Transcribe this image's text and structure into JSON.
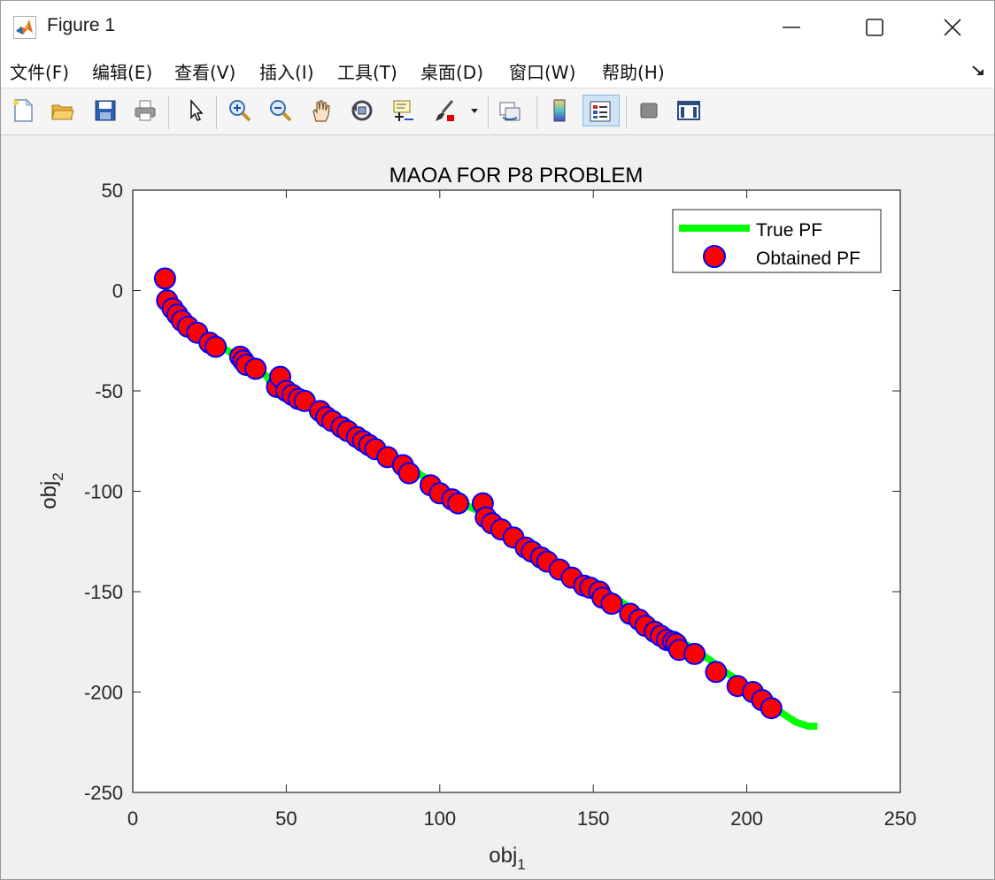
{
  "window": {
    "title": "Figure 1",
    "controls": [
      "minimize",
      "maximize",
      "close"
    ]
  },
  "menu": [
    {
      "label": "文件(F)"
    },
    {
      "label": "编辑(E)"
    },
    {
      "label": "查看(V)"
    },
    {
      "label": "插入(I)"
    },
    {
      "label": "工具(T)"
    },
    {
      "label": "桌面(D)"
    },
    {
      "label": "窗口(W)"
    },
    {
      "label": "帮助(H)"
    }
  ],
  "toolbar": {
    "icons": [
      "new-figure-icon",
      "open-file-icon",
      "save-icon",
      "print-icon",
      "edit-plot-arrow-icon",
      "zoom-in-icon",
      "zoom-out-icon",
      "pan-hand-icon",
      "rotate-3d-icon",
      "data-cursor-icon",
      "brush-icon",
      "brush-dropdown-icon",
      "link-plot-icon",
      "colorbar-icon",
      "legend-icon",
      "hide-plot-tools-icon",
      "show-plot-tools-icon"
    ],
    "active": "legend-icon"
  },
  "colors": {
    "true_pf": "#00ff00",
    "obtained_fill": "#ff0000",
    "obtained_edge": "#0000ff",
    "figure_bg": "#f0f0f0",
    "axes_bg": "#ffffff"
  },
  "chart_data": {
    "type": "scatter",
    "title": "MAOA FOR P8 PROBLEM",
    "xlabel": "obj",
    "xlabel_sub": "1",
    "ylabel": "obj",
    "ylabel_sub": "2",
    "xlim": [
      0,
      250
    ],
    "ylim": [
      -250,
      50
    ],
    "xticks": [
      0,
      50,
      100,
      150,
      200,
      250
    ],
    "yticks": [
      50,
      0,
      -50,
      -100,
      -150,
      -200,
      -250
    ],
    "grid": false,
    "legend_position": "top-right",
    "series": [
      {
        "name": "True PF",
        "type": "line",
        "points": [
          [
            10.5,
            4
          ],
          [
            11,
            0
          ],
          [
            12,
            -5
          ],
          [
            14,
            -10
          ],
          [
            16,
            -14
          ],
          [
            19,
            -18
          ],
          [
            22,
            -21
          ],
          [
            26,
            -25
          ],
          [
            30,
            -29
          ],
          [
            34,
            -33
          ],
          [
            38,
            -37
          ],
          [
            42,
            -41
          ],
          [
            44,
            -43
          ],
          [
            45,
            -48
          ],
          [
            48,
            -50
          ],
          [
            52,
            -53
          ],
          [
            56,
            -57
          ],
          [
            60,
            -60
          ],
          [
            64,
            -64
          ],
          [
            68,
            -67
          ],
          [
            72,
            -71
          ],
          [
            76,
            -75
          ],
          [
            80,
            -79
          ],
          [
            84,
            -83
          ],
          [
            88,
            -86
          ],
          [
            92,
            -90
          ],
          [
            96,
            -94
          ],
          [
            100,
            -98
          ],
          [
            104,
            -102
          ],
          [
            108,
            -106
          ],
          [
            110,
            -108
          ],
          [
            113,
            -110
          ],
          [
            116,
            -114
          ],
          [
            120,
            -118
          ],
          [
            124,
            -122
          ],
          [
            128,
            -126
          ],
          [
            132,
            -129
          ],
          [
            136,
            -133
          ],
          [
            140,
            -137
          ],
          [
            144,
            -141
          ],
          [
            148,
            -145
          ],
          [
            152,
            -148
          ],
          [
            156,
            -152
          ],
          [
            160,
            -156
          ],
          [
            164,
            -160
          ],
          [
            168,
            -164
          ],
          [
            172,
            -168
          ],
          [
            176,
            -172
          ],
          [
            180,
            -176
          ],
          [
            184,
            -180
          ],
          [
            188,
            -184
          ],
          [
            192,
            -189
          ],
          [
            196,
            -193
          ],
          [
            200,
            -198
          ],
          [
            204,
            -202
          ],
          [
            208,
            -207
          ],
          [
            212,
            -211
          ],
          [
            216,
            -215
          ],
          [
            220,
            -217
          ],
          [
            223,
            -217
          ]
        ]
      },
      {
        "name": "Obtained PF",
        "type": "scatter",
        "points": [
          [
            10.5,
            6
          ],
          [
            11.2,
            -5
          ],
          [
            13,
            -9
          ],
          [
            14.5,
            -12
          ],
          [
            16,
            -15
          ],
          [
            18,
            -18
          ],
          [
            21,
            -21
          ],
          [
            25,
            -26
          ],
          [
            27,
            -28
          ],
          [
            35,
            -33
          ],
          [
            36,
            -35
          ],
          [
            37,
            -37
          ],
          [
            40,
            -39
          ],
          [
            47,
            -48
          ],
          [
            48,
            -43
          ],
          [
            50,
            -50
          ],
          [
            52,
            -52
          ],
          [
            54,
            -54
          ],
          [
            56,
            -55
          ],
          [
            61,
            -60
          ],
          [
            63,
            -63
          ],
          [
            65,
            -65
          ],
          [
            68,
            -68
          ],
          [
            70,
            -70
          ],
          [
            73,
            -73
          ],
          [
            75,
            -75
          ],
          [
            77,
            -77
          ],
          [
            79,
            -79
          ],
          [
            83,
            -83
          ],
          [
            88,
            -87
          ],
          [
            90,
            -91
          ],
          [
            97,
            -97
          ],
          [
            100,
            -101
          ],
          [
            104,
            -104
          ],
          [
            106,
            -106
          ],
          [
            114,
            -106
          ],
          [
            115,
            -113
          ],
          [
            117,
            -116
          ],
          [
            120,
            -119
          ],
          [
            124,
            -123
          ],
          [
            128,
            -128
          ],
          [
            130,
            -130
          ],
          [
            133,
            -133
          ],
          [
            135,
            -135
          ],
          [
            139,
            -139
          ],
          [
            143,
            -143
          ],
          [
            147,
            -147
          ],
          [
            149,
            -148
          ],
          [
            152,
            -150
          ],
          [
            153,
            -153
          ],
          [
            156,
            -156
          ],
          [
            162,
            -161
          ],
          [
            165,
            -164
          ],
          [
            167,
            -167
          ],
          [
            170,
            -170
          ],
          [
            172,
            -172
          ],
          [
            174,
            -174
          ],
          [
            176,
            -175
          ],
          [
            177,
            -176
          ],
          [
            178,
            -179
          ],
          [
            183,
            -181
          ],
          [
            190,
            -190
          ],
          [
            197,
            -197
          ],
          [
            202,
            -200
          ],
          [
            205,
            -204
          ],
          [
            208,
            -208
          ]
        ]
      }
    ]
  }
}
